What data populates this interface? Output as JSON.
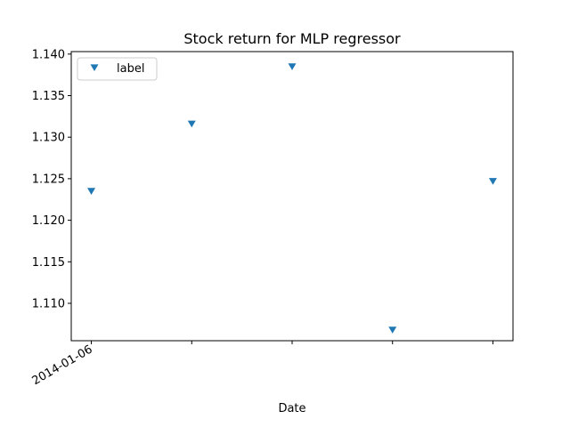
{
  "chart_data": {
    "type": "scatter",
    "title": "Stock return for MLP regressor",
    "xlabel": "Date",
    "ylabel": "",
    "x_tick_labels": [
      "2014-01-06",
      "",
      "",
      "",
      ""
    ],
    "y_ticks": [
      1.11,
      1.115,
      1.12,
      1.125,
      1.13,
      1.135,
      1.14
    ],
    "y_tick_labels": [
      "1.110",
      "1.115",
      "1.120",
      "1.125",
      "1.130",
      "1.135",
      "1.140"
    ],
    "ylim": [
      1.1055,
      1.1403
    ],
    "xlim": [
      -0.2,
      4.2
    ],
    "grid": false,
    "legend_position": "upper-left",
    "series": [
      {
        "name": "label",
        "marker": "triangle-down",
        "color": "#1f77b4",
        "x": [
          0,
          1,
          2,
          3,
          4
        ],
        "values": [
          1.1235,
          1.1316,
          1.1385,
          1.1068,
          1.1247
        ]
      }
    ]
  }
}
